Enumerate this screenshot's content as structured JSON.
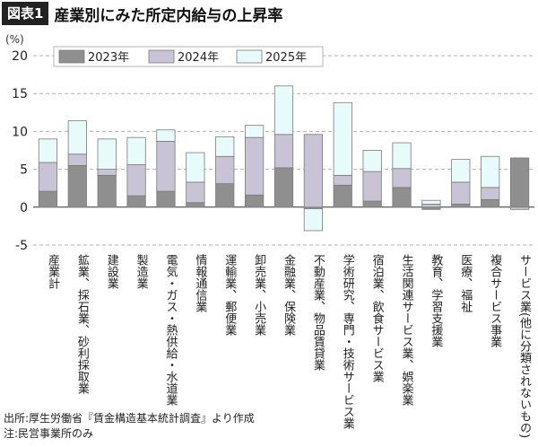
{
  "header": {
    "figure_tag": "図表1",
    "title": "産業別にみた所定内給与の上昇率"
  },
  "footer": {
    "source": "出所:厚生労働省『賃金構造基本統計調査』より作成",
    "note": "注:民営事業所のみ"
  },
  "colors": {
    "s2023": "#8f8f8f",
    "s2024": "#c9c3d6",
    "s2025": "#e8fbfb",
    "outline": "#7a7a7a",
    "grid": "#b0b0b0"
  },
  "chart_data": {
    "type": "bar",
    "stacked": true,
    "ylabel": "(%)",
    "ylim": [
      -5,
      20
    ],
    "yticks": [
      -5,
      0,
      5,
      10,
      15,
      20
    ],
    "grid": "horizontal-dashed",
    "legend_position": "top",
    "categories": [
      "産業計",
      "鉱業、採石業、砂利採取業",
      "建設業",
      "製造業",
      "電気・ガス・熱供給・水道業",
      "情報通信業",
      "運輸業、郵便業",
      "卸売業、小売業",
      "金融業、保険業",
      "不動産業、物品賃貸業",
      "学術研究、専門・技術サービス業",
      "宿泊業、飲食サービス業",
      "生活関連サービス業、娯楽業",
      "教育、学習支援業",
      "医療、福祉",
      "複合サービス事業",
      "サービス業(他に分類されないもの)"
    ],
    "series": [
      {
        "name": "2023年",
        "values": [
          2.1,
          5.5,
          4.2,
          1.5,
          2.1,
          0.6,
          3.1,
          1.6,
          5.2,
          -0.2,
          2.9,
          0.8,
          2.6,
          -0.3,
          0.4,
          1.0,
          6.5
        ]
      },
      {
        "name": "2024年",
        "values": [
          3.8,
          1.5,
          0.8,
          4.1,
          6.6,
          2.7,
          3.6,
          7.6,
          4.4,
          9.6,
          1.3,
          3.9,
          2.5,
          0.4,
          2.9,
          1.6,
          -0.3
        ]
      },
      {
        "name": "2025年",
        "values": [
          3.1,
          4.4,
          4.0,
          3.6,
          1.5,
          3.9,
          2.6,
          1.6,
          6.4,
          -2.9,
          9.6,
          2.8,
          3.4,
          0.5,
          3.0,
          4.1,
          0.0
        ]
      }
    ]
  }
}
